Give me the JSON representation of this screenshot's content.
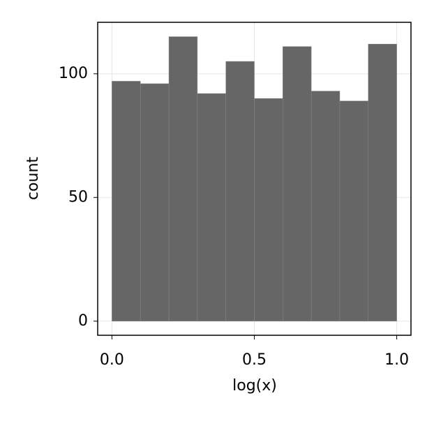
{
  "chart_data": {
    "type": "histogram",
    "x_label": "log(x)",
    "y_label": "count",
    "bins": [
      0,
      0.1,
      0.2,
      0.3,
      0.4,
      0.5,
      0.6,
      0.7,
      0.8,
      0.9,
      1.0
    ],
    "values": [
      97,
      96,
      115,
      92,
      105,
      90,
      111,
      93,
      89,
      112
    ],
    "color": "#666666",
    "xlim": [
      -0.05,
      1.05
    ],
    "ylim": [
      -5.7,
      120.8
    ],
    "xticks": [
      {
        "value": 0,
        "label": "0.0"
      },
      0.5,
      {
        "value": 1,
        "label": "1.0"
      }
    ],
    "yticks": [
      0,
      50,
      100
    ],
    "grid": true
  }
}
